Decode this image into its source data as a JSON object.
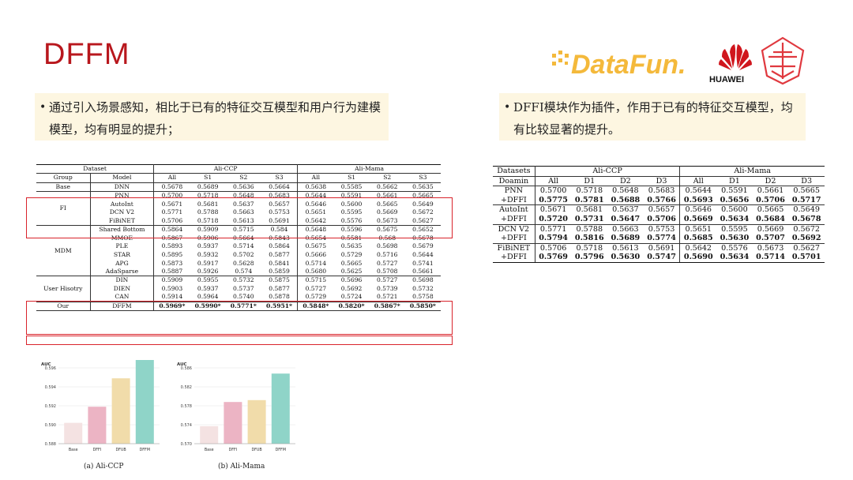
{
  "title": "DFFM",
  "logo": {
    "datafun": "DataFun.",
    "huawei": "HUAWEI"
  },
  "bullets": {
    "left": "通过引入场景感知，相比于已有的特征交互模型和用户行为建模模型，均有明显的提升；",
    "right": "DFFI模块作为插件，作用于已有的特征交互模型，均有比较显著的提升。"
  },
  "table1": {
    "head1": [
      "Dataset",
      "Ali-CCP",
      "Ali-Mama"
    ],
    "head2": [
      "Group",
      "Model",
      "All",
      "S1",
      "S2",
      "S3",
      "All",
      "S1",
      "S2",
      "S3"
    ],
    "groups": [
      {
        "name": "Base",
        "rows": [
          [
            "DNN",
            "0.5678",
            "0.5689",
            "0.5636",
            "0.5664",
            "0.5638",
            "0.5585",
            "0.5662",
            "0.5635"
          ]
        ]
      },
      {
        "name": "FI",
        "rows": [
          [
            "PNN",
            "0.5700",
            "0.5718",
            "0.5648",
            "0.5683",
            "0.5644",
            "0.5591",
            "0.5661",
            "0.5665"
          ],
          [
            "AutoInt",
            "0.5671",
            "0.5681",
            "0.5637",
            "0.5657",
            "0.5646",
            "0.5600",
            "0.5665",
            "0.5649"
          ],
          [
            "DCN V2",
            "0.5771",
            "0.5788",
            "0.5663",
            "0.5753",
            "0.5651",
            "0.5595",
            "0.5669",
            "0.5672"
          ],
          [
            "FiBiNET",
            "0.5706",
            "0.5718",
            "0.5613",
            "0.5691",
            "0.5642",
            "0.5576",
            "0.5673",
            "0.5627"
          ]
        ]
      },
      {
        "name": "MDM",
        "rows": [
          [
            "Shared Bottom",
            "0.5864",
            "0.5909",
            "0.5715",
            "0.584",
            "0.5648",
            "0.5596",
            "0.5675",
            "0.5652"
          ],
          [
            "MMOE",
            "0.5867",
            "0.5906",
            "0.5664",
            "0.5843",
            "0.5654",
            "0.5581",
            "0.568",
            "0.5678"
          ],
          [
            "PLE",
            "0.5893",
            "0.5937",
            "0.5714",
            "0.5864",
            "0.5675",
            "0.5635",
            "0.5698",
            "0.5679"
          ],
          [
            "STAR",
            "0.5895",
            "0.5932",
            "0.5702",
            "0.5877",
            "0.5666",
            "0.5729",
            "0.5716",
            "0.5644"
          ],
          [
            "APG",
            "0.5873",
            "0.5917",
            "0.5628",
            "0.5841",
            "0.5714",
            "0.5665",
            "0.5727",
            "0.5741"
          ],
          [
            "AdaSparse",
            "0.5887",
            "0.5926",
            "0.574",
            "0.5859",
            "0.5680",
            "0.5625",
            "0.5708",
            "0.5661"
          ]
        ]
      },
      {
        "name": "User Hisotry",
        "rows": [
          [
            "DIN",
            "0.5909",
            "0.5955",
            "0.5732",
            "0.5875",
            "0.5715",
            "0.5696",
            "0.5727",
            "0.5698"
          ],
          [
            "DIEN",
            "0.5903",
            "0.5937",
            "0.5737",
            "0.5877",
            "0.5727",
            "0.5692",
            "0.5739",
            "0.5732"
          ],
          [
            "CAN",
            "0.5914",
            "0.5964",
            "0.5740",
            "0.5878",
            "0.5729",
            "0.5724",
            "0.5721",
            "0.5758"
          ]
        ]
      },
      {
        "name": "Our",
        "rows": [
          [
            "DFFM",
            "0.5969*",
            "0.5990*",
            "0.5771*",
            "0.5951*",
            "0.5848*",
            "0.5820*",
            "0.5867*",
            "0.5850*"
          ]
        ]
      }
    ]
  },
  "table2": {
    "head1": [
      "Datasets",
      "Ali-CCP",
      "Ali-Mama"
    ],
    "head2": [
      "Doamin",
      "All",
      "D1",
      "D2",
      "D3",
      "All",
      "D1",
      "D2",
      "D3"
    ],
    "pairs": [
      [
        [
          "PNN",
          "0.5700",
          "0.5718",
          "0.5648",
          "0.5683",
          "0.5644",
          "0.5591",
          "0.5661",
          "0.5665"
        ],
        [
          "+DFFI",
          "0.5775",
          "0.5781",
          "0.5688",
          "0.5766",
          "0.5693",
          "0.5656",
          "0.5706",
          "0.5717"
        ]
      ],
      [
        [
          "AutoInt",
          "0.5671",
          "0.5681",
          "0.5637",
          "0.5657",
          "0.5646",
          "0.5600",
          "0.5665",
          "0.5649"
        ],
        [
          "+DFFI",
          "0.5720",
          "0.5731",
          "0.5647",
          "0.5706",
          "0.5669",
          "0.5634",
          "0.5684",
          "0.5678"
        ]
      ],
      [
        [
          "DCN V2",
          "0.5771",
          "0.5788",
          "0.5663",
          "0.5753",
          "0.5651",
          "0.5595",
          "0.5669",
          "0.5672"
        ],
        [
          "+DFFI",
          "0.5794",
          "0.5816",
          "0.5689",
          "0.5774",
          "0.5685",
          "0.5630",
          "0.5707",
          "0.5692"
        ]
      ],
      [
        [
          "FiBiNET",
          "0.5706",
          "0.5718",
          "0.5613",
          "0.5691",
          "0.5642",
          "0.5576",
          "0.5673",
          "0.5627"
        ],
        [
          "+DFFI",
          "0.5769",
          "0.5796",
          "0.5630",
          "0.5747",
          "0.5690",
          "0.5634",
          "0.5714",
          "0.5701"
        ]
      ]
    ]
  },
  "chart_data": [
    {
      "type": "bar",
      "title": "",
      "caption": "(a) Ali-CCP",
      "ylabel": "AUC",
      "categories": [
        "Base",
        "DFFI",
        "DFUB",
        "DFFM"
      ],
      "values": [
        0.5902,
        0.5919,
        0.5949,
        0.5969
      ],
      "colors": [
        "#f4e2e2",
        "#ecb4c4",
        "#f1dcaa",
        "#8fd4c8"
      ],
      "ylim": [
        0.588,
        0.596
      ],
      "yticks": [
        "0.588",
        "0.590",
        "0.592",
        "0.594",
        "0.596"
      ]
    },
    {
      "type": "bar",
      "title": "",
      "caption": "(b) Ali-Mama",
      "ylabel": "AUC",
      "categories": [
        "Base",
        "DFFI",
        "DFUB",
        "DFFM"
      ],
      "values": [
        0.5737,
        0.5788,
        0.5792,
        0.5848
      ],
      "colors": [
        "#f4e2e2",
        "#ecb4c4",
        "#f1dcaa",
        "#8fd4c8"
      ],
      "ylim": [
        0.57,
        0.586
      ],
      "yticks": [
        "0.570",
        "0.574",
        "0.578",
        "0.582",
        "0.586"
      ]
    }
  ]
}
